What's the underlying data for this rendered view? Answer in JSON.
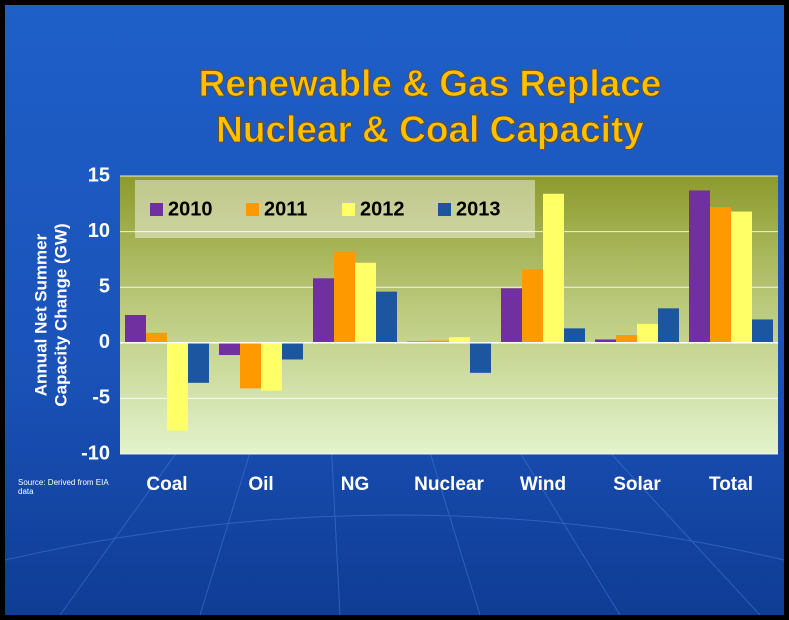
{
  "chart_data": {
    "type": "bar",
    "title": [
      "Renewable & Gas Replace",
      "Nuclear & Coal Capacity"
    ],
    "ylabel": [
      "Annual Net Summer",
      "Capacity Change (GW)"
    ],
    "source": "Source: Derived from EIA data",
    "categories": [
      "Coal",
      "Oil",
      "NG",
      "Nuclear",
      "Wind",
      "Solar",
      "Total"
    ],
    "series": [
      {
        "name": "2010",
        "color": "#7030a0",
        "values": [
          2.5,
          -1.1,
          5.8,
          0.1,
          4.9,
          0.3,
          13.7
        ]
      },
      {
        "name": "2011",
        "color": "#ff9900",
        "values": [
          0.9,
          -4.1,
          8.2,
          0.2,
          6.6,
          0.7,
          12.2
        ]
      },
      {
        "name": "2012",
        "color": "#ffff66",
        "values": [
          -7.9,
          -4.3,
          7.2,
          0.5,
          13.4,
          1.7,
          11.8
        ]
      },
      {
        "name": "2013",
        "color": "#1c55a0",
        "values": [
          -3.6,
          -1.5,
          4.6,
          -2.7,
          1.3,
          3.1,
          2.1
        ]
      }
    ],
    "ylim": [
      -10,
      15
    ],
    "yticks": [
      -10,
      -5,
      0,
      5,
      10,
      15
    ],
    "grid": true,
    "legend": "top-left"
  }
}
